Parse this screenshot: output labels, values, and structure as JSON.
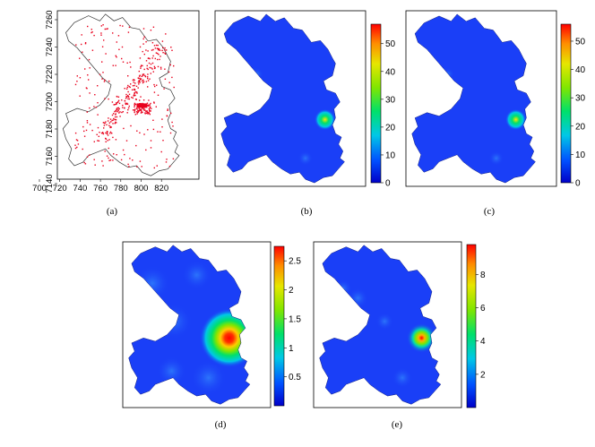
{
  "panels": [
    {
      "id": "a",
      "caption": "(a)",
      "x_ticks": [
        "700",
        "720",
        "740",
        "760",
        "780",
        "800",
        "820"
      ],
      "y_ticks": [
        "7140",
        "7160",
        "7180",
        "7200",
        "7220",
        "7240",
        "7260"
      ],
      "point_color": "#e8001c"
    },
    {
      "id": "b",
      "caption": "(b)",
      "scale_ticks": [
        "0",
        "10",
        "20",
        "30",
        "40",
        "50"
      ],
      "scale_range": [
        0,
        57
      ],
      "hotspot_peak": 57
    },
    {
      "id": "c",
      "caption": "(c)",
      "scale_ticks": [
        "0",
        "10",
        "20",
        "30",
        "40",
        "50"
      ],
      "scale_range": [
        0,
        56
      ],
      "hotspot_peak": 56
    },
    {
      "id": "d",
      "caption": "(d)",
      "scale_ticks": [
        "0.5",
        "1",
        "1.5",
        "2",
        "2.5"
      ],
      "scale_range": [
        0,
        2.75
      ],
      "hotspot_peak": 2.75
    },
    {
      "id": "e",
      "caption": "(e)",
      "scale_ticks": [
        "2",
        "4",
        "6",
        "8"
      ],
      "scale_range": [
        0,
        9.8
      ],
      "hotspot_peak": 9.8
    }
  ],
  "colors": {
    "region_fill": "#1a3ff7",
    "outline": "#000000",
    "colorbar": [
      "#0000c8",
      "#0050ff",
      "#00c8e6",
      "#00e06a",
      "#80e600",
      "#e6e600",
      "#ff8c00",
      "#ff0000"
    ]
  }
}
